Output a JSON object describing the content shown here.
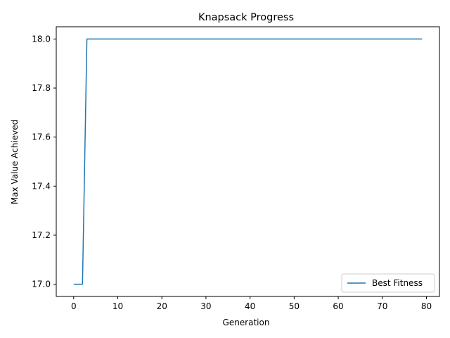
{
  "chart_data": {
    "type": "line",
    "title": "Knapsack Progress",
    "xlabel": "Generation",
    "ylabel": "Max Value Achieved",
    "xlim": [
      -3.95,
      82.95
    ],
    "ylim": [
      16.95,
      18.05
    ],
    "xticks": [
      0,
      10,
      20,
      30,
      40,
      50,
      60,
      70,
      80
    ],
    "yticks": [
      17.0,
      17.2,
      17.4,
      17.6,
      17.8,
      18.0
    ],
    "ytick_labels": [
      "17.0",
      "17.2",
      "17.4",
      "17.6",
      "17.8",
      "18.0"
    ],
    "grid": false,
    "legend_placement": "lower-right",
    "series": [
      {
        "name": "Best Fitness",
        "color": "#1f77b4",
        "points": [
          [
            0,
            17
          ],
          [
            1,
            17
          ],
          [
            2,
            17
          ],
          [
            3,
            18
          ],
          [
            79,
            18
          ]
        ]
      }
    ]
  }
}
